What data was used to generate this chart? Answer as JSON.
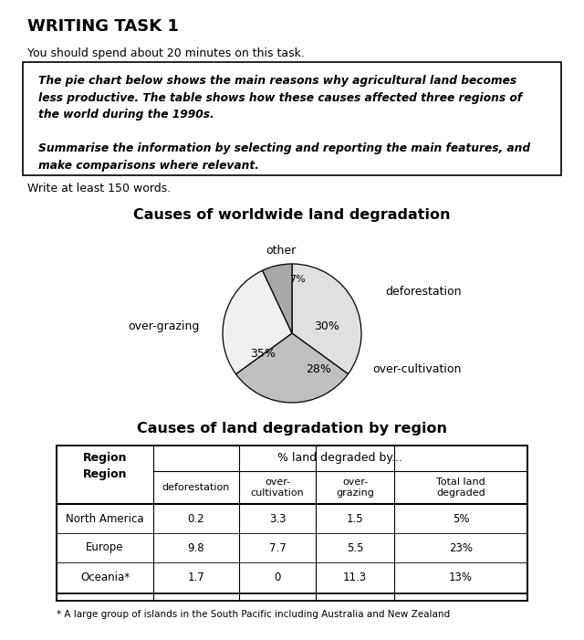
{
  "title": "WRITING TASK 1",
  "subtitle": "You should spend about 20 minutes on this task.",
  "box_line1": "The pie chart below shows the main reasons why agricultural land becomes",
  "box_line2": "less productive. The table shows how these causes affected three regions of",
  "box_line3": "the world during the 1990s.",
  "box_line4": "Summarise the information by selecting and reporting the main features, and",
  "box_line5": "make comparisons where relevant.",
  "write_note": "Write at least 150 words.",
  "pie_title": "Causes of worldwide land degradation",
  "pie_slices": [
    35,
    30,
    28,
    7
  ],
  "pie_colors": [
    "#e0e0e0",
    "#c0c0c0",
    "#f0f0f0",
    "#a8a8a8"
  ],
  "pie_pcts": [
    "35%",
    "30%",
    "28%",
    "7%"
  ],
  "pie_outer_labels": [
    "over-grazing",
    "deforestation",
    "over-cultivation",
    "other"
  ],
  "table_title": "Causes of land degradation by region",
  "table_col_header1": "Region",
  "table_col_header2": "% land degraded by...",
  "table_sub_headers": [
    "deforestation",
    "over-\ncultivation",
    "over-\ngrazing",
    "Total land\ndegraded"
  ],
  "table_data": [
    [
      "North America",
      "0.2",
      "3.3",
      "1.5",
      "5%"
    ],
    [
      "Europe",
      "9.8",
      "7.7",
      "5.5",
      "23%"
    ],
    [
      "Oceania*",
      "1.7",
      "0",
      "11.3",
      "13%"
    ]
  ],
  "footnote": "* A large group of islands in the South Pacific including Australia and New Zealand",
  "bg_color": "#ffffff"
}
